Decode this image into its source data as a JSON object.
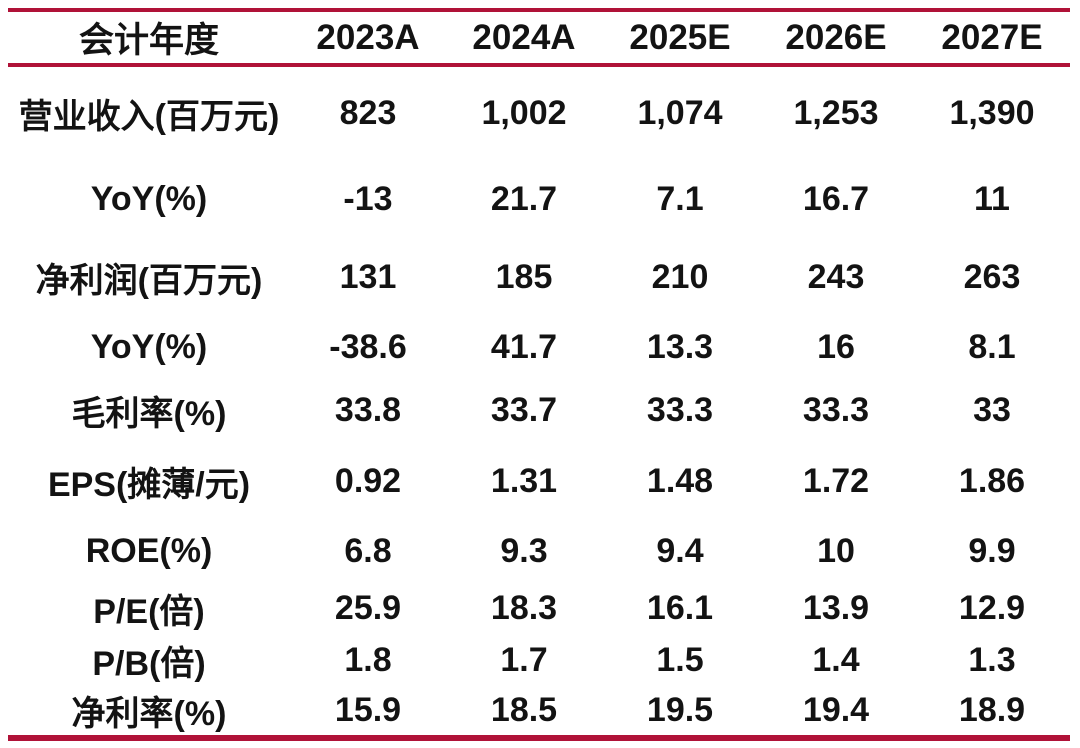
{
  "chart_data": {
    "type": "table",
    "columns": [
      "会计年度",
      "2023A",
      "2024A",
      "2025E",
      "2026E",
      "2027E"
    ],
    "rows": [
      {
        "label": "营业收入(百万元)",
        "values": [
          "823",
          "1,002",
          "1,074",
          "1,253",
          "1,390"
        ]
      },
      {
        "label": "YoY(%)",
        "values": [
          "-13",
          "21.7",
          "7.1",
          "16.7",
          "11"
        ]
      },
      {
        "label": "净利润(百万元)",
        "values": [
          "131",
          "185",
          "210",
          "243",
          "263"
        ]
      },
      {
        "label": "YoY(%)",
        "values": [
          "-38.6",
          "41.7",
          "13.3",
          "16",
          "8.1"
        ]
      },
      {
        "label": "毛利率(%)",
        "values": [
          "33.8",
          "33.7",
          "33.3",
          "33.3",
          "33"
        ]
      },
      {
        "label": "EPS(摊薄/元)",
        "values": [
          "0.92",
          "1.31",
          "1.48",
          "1.72",
          "1.86"
        ]
      },
      {
        "label": "ROE(%)",
        "values": [
          "6.8",
          "9.3",
          "9.4",
          "10",
          "9.9"
        ]
      },
      {
        "label": "P/E(倍)",
        "values": [
          "25.9",
          "18.3",
          "16.1",
          "13.9",
          "12.9"
        ]
      },
      {
        "label": "P/B(倍)",
        "values": [
          "1.8",
          "1.7",
          "1.5",
          "1.4",
          "1.3"
        ]
      },
      {
        "label": "净利率(%)",
        "values": [
          "15.9",
          "18.5",
          "19.5",
          "19.4",
          "18.9"
        ]
      }
    ],
    "layout_hints": {
      "first_column_header": "会计年度",
      "grid": "off",
      "rules": [
        "top",
        "below-header",
        "bottom"
      ]
    }
  },
  "colors": {
    "accent": "#b01238",
    "text": "#131313",
    "background": "#ffffff"
  }
}
